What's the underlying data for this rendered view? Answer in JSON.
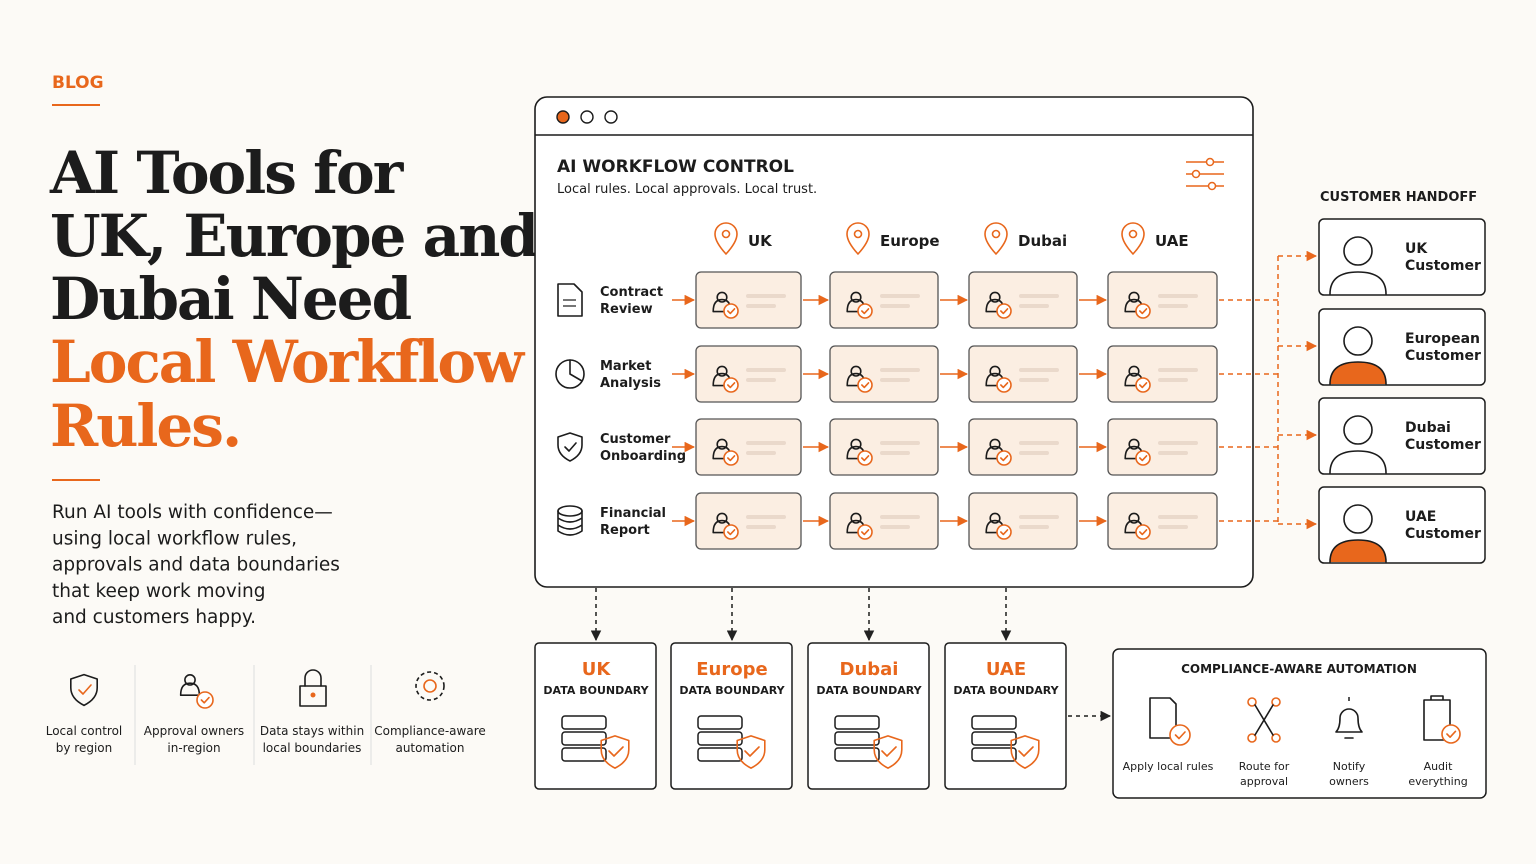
{
  "header": {
    "tag": "BLOG",
    "title_lines": [
      "AI Tools for",
      "UK, Europe and",
      "Dubai Need"
    ],
    "highlight_lines": [
      "Local Workflow",
      "Rules."
    ]
  },
  "intro_lines": [
    "Run AI tools with confidence—",
    "using local workflow rules,",
    "approvals and data boundaries",
    "that keep work moving",
    "and customers happy."
  ],
  "features": [
    [
      "Local control",
      "by region"
    ],
    [
      "Approval owners",
      "in-region"
    ],
    [
      "Data stays within",
      "local boundaries"
    ],
    [
      "Compliance-aware",
      "automation"
    ]
  ],
  "window": {
    "title": "AI WORKFLOW CONTROL",
    "subtitle": "Local rules. Local approvals. Local trust.",
    "regions": [
      "UK",
      "Europe",
      "Dubai",
      "UAE"
    ],
    "workflows": [
      [
        "Contract",
        "Review"
      ],
      [
        "Market",
        "Analysis"
      ],
      [
        "Customer",
        "Onboarding"
      ],
      [
        "Financial",
        "Report"
      ]
    ]
  },
  "handoff": {
    "title": "CUSTOMER HANDOFF",
    "customers": [
      [
        "UK",
        "Customer"
      ],
      [
        "European",
        "Customer"
      ],
      [
        "Dubai",
        "Customer"
      ],
      [
        "UAE",
        "Customer"
      ]
    ]
  },
  "boundaries": [
    {
      "region": "UK",
      "label": "DATA BOUNDARY"
    },
    {
      "region": "Europe",
      "label": "DATA BOUNDARY"
    },
    {
      "region": "Dubai",
      "label": "DATA BOUNDARY"
    },
    {
      "region": "UAE",
      "label": "DATA BOUNDARY"
    }
  ],
  "automation": {
    "title": "COMPLIANCE-AWARE AUTOMATION",
    "steps": [
      [
        "Apply local rules"
      ],
      [
        "Route for",
        "approval"
      ],
      [
        "Notify",
        "owners"
      ],
      [
        "Audit",
        "everything"
      ]
    ]
  }
}
